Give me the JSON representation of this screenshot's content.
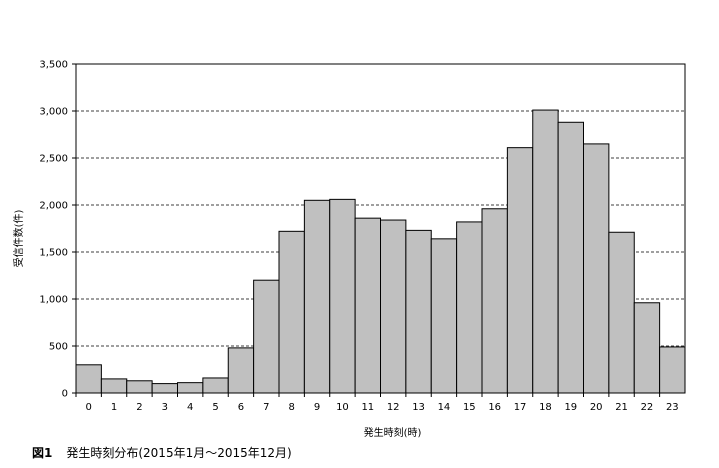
{
  "chart_data": {
    "type": "bar",
    "xlabel": "発生時刻(時)",
    "ylabel": "受信件数(件)",
    "ylim": [
      0,
      3500
    ],
    "yticks": [
      0,
      500,
      1000,
      1500,
      2000,
      2500,
      3000,
      3500
    ],
    "ytick_labels": [
      "0",
      "500",
      "1,000",
      "1,500",
      "2,000",
      "2,500",
      "3,000",
      "3,500"
    ],
    "grid": "horizontal dashed",
    "legend": "none",
    "categories": [
      "0",
      "1",
      "2",
      "3",
      "4",
      "5",
      "6",
      "7",
      "8",
      "9",
      "10",
      "11",
      "12",
      "13",
      "14",
      "15",
      "16",
      "17",
      "18",
      "19",
      "20",
      "21",
      "22",
      "23"
    ],
    "values": [
      300,
      150,
      130,
      100,
      110,
      160,
      480,
      1200,
      1720,
      2050,
      2060,
      1860,
      1840,
      1730,
      1640,
      1820,
      1960,
      2610,
      3010,
      2880,
      2650,
      1710,
      960,
      490
    ],
    "colors": {
      "bar_fill": "#c0c0c0",
      "bar_stroke": "#000000",
      "grid": "#000000"
    }
  },
  "caption": {
    "figure_label": "図1",
    "text": "発生時刻分布(2015年1月～2015年12月)"
  }
}
